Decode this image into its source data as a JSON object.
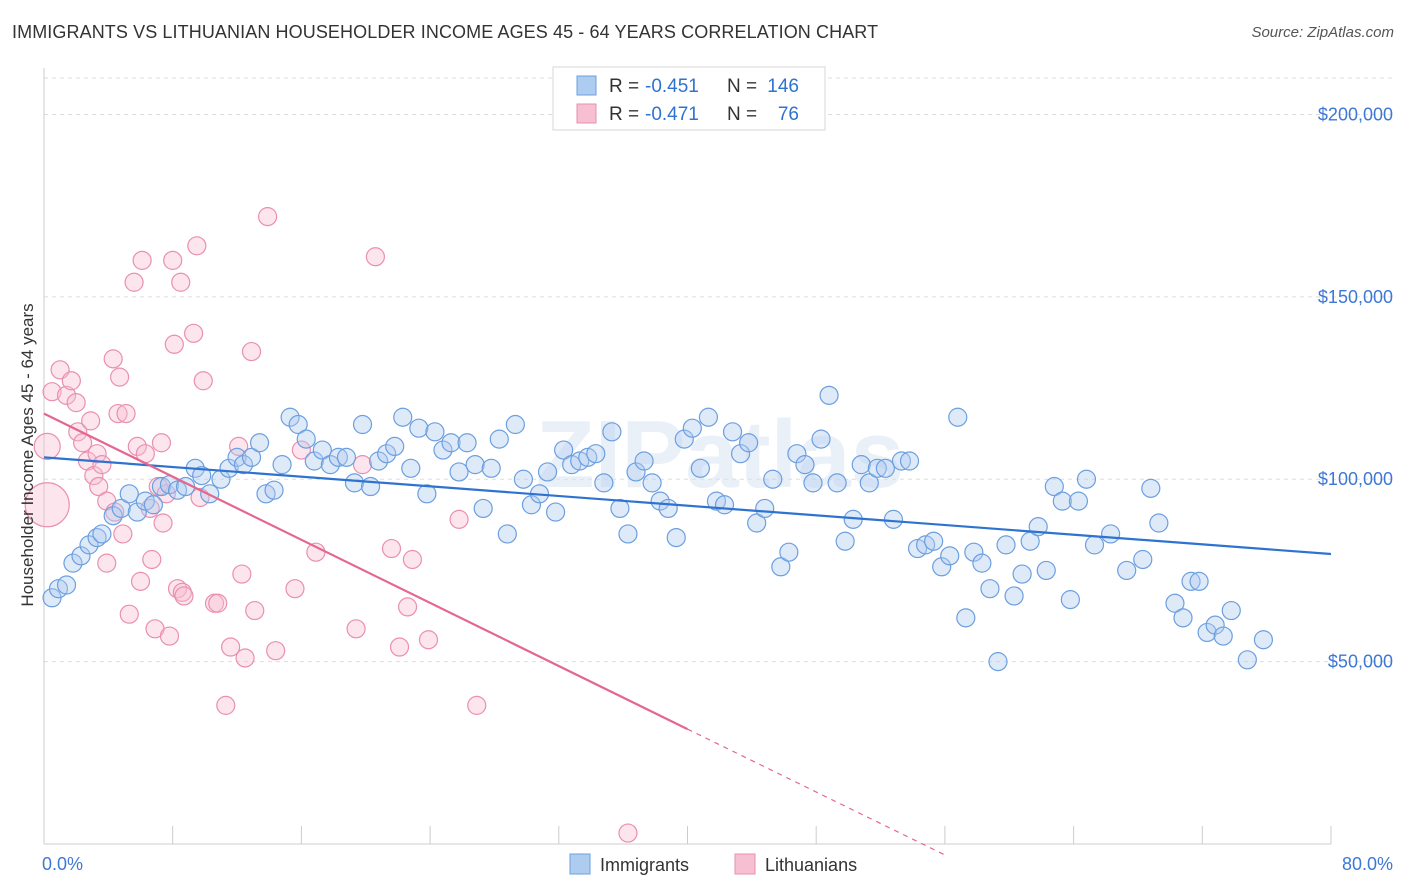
{
  "chart_data": {
    "type": "scatter",
    "title": "IMMIGRANTS VS LITHUANIAN HOUSEHOLDER INCOME AGES 45 - 64 YEARS CORRELATION CHART",
    "source": "Source: ZipAtlas.com",
    "watermark": "ZIPatlas",
    "xlabel": "",
    "ylabel": "Householder Income Ages 45 - 64 years",
    "xlim": [
      0,
      80
    ],
    "ylim": [
      0,
      210000
    ],
    "x_tick_labels": [
      "0.0%",
      "80.0%"
    ],
    "y_ticks": [
      50000,
      100000,
      150000,
      200000
    ],
    "y_tick_labels": [
      "$50,000",
      "$100,000",
      "$150,000",
      "$200,000"
    ],
    "grid": true,
    "legend": {
      "top": [
        {
          "r_label": "R =",
          "r_value": "-0.451",
          "n_label": "N =",
          "n_value": "146"
        },
        {
          "r_label": "R =",
          "r_value": "-0.471",
          "n_label": "N =",
          "n_value": "76"
        }
      ],
      "bottom": [
        "Immigrants",
        "Lithuanians"
      ]
    },
    "colors": {
      "immigrants_fill": "#aecbf0",
      "immigrants_stroke": "#6b9fe0",
      "immigrants_line": "#2f73d0",
      "lithuanians_fill": "#f7bfd2",
      "lithuanians_stroke": "#ea8fb0",
      "lithuanians_line": "#e4678f",
      "tick_label": "#3d78d6",
      "grid": "#dddddd"
    },
    "series": [
      {
        "name": "Immigrants",
        "trend": {
          "x": [
            0,
            80
          ],
          "y": [
            106000,
            79500
          ]
        },
        "points": [
          [
            0.5,
            67500
          ],
          [
            0.9,
            70000
          ],
          [
            1.4,
            71000
          ],
          [
            1.8,
            77000
          ],
          [
            2.3,
            79000
          ],
          [
            2.8,
            82000
          ],
          [
            3.3,
            84000
          ],
          [
            3.6,
            85000
          ],
          [
            4.3,
            90000
          ],
          [
            4.8,
            92000
          ],
          [
            5.3,
            96000
          ],
          [
            5.8,
            91000
          ],
          [
            6.3,
            94000
          ],
          [
            6.8,
            93000
          ],
          [
            7.3,
            98000
          ],
          [
            7.8,
            98500
          ],
          [
            8.3,
            97000
          ],
          [
            8.8,
            98000
          ],
          [
            9.4,
            103000
          ],
          [
            9.8,
            101000
          ],
          [
            10.3,
            96000
          ],
          [
            11.0,
            100000
          ],
          [
            11.5,
            103000
          ],
          [
            12.0,
            106000
          ],
          [
            12.4,
            104000
          ],
          [
            12.9,
            106000
          ],
          [
            13.4,
            110000
          ],
          [
            13.8,
            96000
          ],
          [
            14.3,
            97000
          ],
          [
            14.8,
            104000
          ],
          [
            15.3,
            117000
          ],
          [
            15.8,
            115000
          ],
          [
            16.3,
            111000
          ],
          [
            16.8,
            105000
          ],
          [
            17.3,
            108000
          ],
          [
            17.8,
            104000
          ],
          [
            18.3,
            106000
          ],
          [
            18.8,
            106000
          ],
          [
            19.3,
            99000
          ],
          [
            19.8,
            115000
          ],
          [
            20.3,
            98000
          ],
          [
            20.8,
            105000
          ],
          [
            21.3,
            107000
          ],
          [
            21.8,
            109000
          ],
          [
            22.3,
            117000
          ],
          [
            22.8,
            103000
          ],
          [
            23.3,
            114000
          ],
          [
            23.8,
            96000
          ],
          [
            24.3,
            113000
          ],
          [
            24.8,
            108000
          ],
          [
            25.3,
            110000
          ],
          [
            25.8,
            102000
          ],
          [
            26.3,
            110000
          ],
          [
            26.8,
            104000
          ],
          [
            27.3,
            92000
          ],
          [
            27.8,
            103000
          ],
          [
            28.3,
            111000
          ],
          [
            28.8,
            85000
          ],
          [
            29.3,
            115000
          ],
          [
            29.8,
            100000
          ],
          [
            30.3,
            93000
          ],
          [
            30.8,
            96000
          ],
          [
            31.3,
            102000
          ],
          [
            31.8,
            91000
          ],
          [
            32.3,
            108000
          ],
          [
            32.8,
            104000
          ],
          [
            33.3,
            105000
          ],
          [
            33.8,
            106000
          ],
          [
            34.3,
            107000
          ],
          [
            34.8,
            99000
          ],
          [
            35.3,
            113000
          ],
          [
            35.8,
            92000
          ],
          [
            36.3,
            85000
          ],
          [
            36.8,
            102000
          ],
          [
            37.3,
            105000
          ],
          [
            37.8,
            99000
          ],
          [
            38.3,
            94000
          ],
          [
            38.8,
            92000
          ],
          [
            39.3,
            84000
          ],
          [
            39.8,
            111000
          ],
          [
            40.3,
            114000
          ],
          [
            40.8,
            103000
          ],
          [
            41.3,
            117000
          ],
          [
            41.8,
            94000
          ],
          [
            42.3,
            93000
          ],
          [
            42.8,
            113000
          ],
          [
            43.3,
            107000
          ],
          [
            43.8,
            110000
          ],
          [
            44.3,
            88000
          ],
          [
            44.8,
            92000
          ],
          [
            45.3,
            100000
          ],
          [
            45.8,
            76000
          ],
          [
            46.3,
            80000
          ],
          [
            46.8,
            107000
          ],
          [
            47.3,
            104000
          ],
          [
            47.8,
            99000
          ],
          [
            48.3,
            111000
          ],
          [
            48.8,
            123000
          ],
          [
            49.3,
            99000
          ],
          [
            49.8,
            83000
          ],
          [
            50.3,
            89000
          ],
          [
            50.8,
            104000
          ],
          [
            51.3,
            99000
          ],
          [
            51.8,
            103000
          ],
          [
            52.3,
            103000
          ],
          [
            52.8,
            89000
          ],
          [
            53.3,
            105000
          ],
          [
            53.8,
            105000
          ],
          [
            54.3,
            81000
          ],
          [
            54.8,
            82000
          ],
          [
            55.3,
            83000
          ],
          [
            55.8,
            76000
          ],
          [
            56.3,
            79000
          ],
          [
            56.8,
            117000
          ],
          [
            57.3,
            62000
          ],
          [
            57.8,
            80000
          ],
          [
            58.3,
            77000
          ],
          [
            58.8,
            70000
          ],
          [
            59.3,
            50000
          ],
          [
            59.8,
            82000
          ],
          [
            60.3,
            68000
          ],
          [
            60.8,
            74000
          ],
          [
            61.3,
            83000
          ],
          [
            61.8,
            87000
          ],
          [
            62.3,
            75000
          ],
          [
            62.8,
            98000
          ],
          [
            63.3,
            94000
          ],
          [
            63.8,
            67000
          ],
          [
            64.3,
            94000
          ],
          [
            64.8,
            100000
          ],
          [
            65.3,
            82000
          ],
          [
            66.3,
            85000
          ],
          [
            67.3,
            75000
          ],
          [
            68.3,
            78000
          ],
          [
            68.8,
            97500
          ],
          [
            69.3,
            88000
          ],
          [
            70.3,
            66000
          ],
          [
            70.8,
            62000
          ],
          [
            71.3,
            72000
          ],
          [
            71.8,
            72000
          ],
          [
            72.3,
            58000
          ],
          [
            72.8,
            60000
          ],
          [
            73.3,
            57000
          ],
          [
            73.8,
            64000
          ],
          [
            74.8,
            50500
          ],
          [
            75.8,
            56000
          ]
        ]
      },
      {
        "name": "Lithuanians",
        "trend": {
          "x": [
            0,
            40
          ],
          "y": [
            118000,
            31500
          ]
        },
        "trend_dashed": {
          "x": [
            40,
            56
          ],
          "y": [
            31500,
            -3000
          ]
        },
        "points": [
          [
            0.2,
            109000,
            "big"
          ],
          [
            0.2,
            93000,
            "huge"
          ],
          [
            0.5,
            124000
          ],
          [
            1.0,
            130000
          ],
          [
            1.4,
            123000
          ],
          [
            1.7,
            127000
          ],
          [
            2.0,
            121000
          ],
          [
            2.1,
            113000
          ],
          [
            2.4,
            110000
          ],
          [
            2.7,
            105000
          ],
          [
            2.9,
            116000
          ],
          [
            3.1,
            101000
          ],
          [
            3.3,
            107000
          ],
          [
            3.4,
            98000
          ],
          [
            3.6,
            104000
          ],
          [
            3.9,
            94000
          ],
          [
            3.9,
            77000
          ],
          [
            4.3,
            133000
          ],
          [
            4.4,
            91000
          ],
          [
            4.6,
            118000
          ],
          [
            4.7,
            128000
          ],
          [
            4.9,
            85000
          ],
          [
            5.1,
            118000
          ],
          [
            5.3,
            63000
          ],
          [
            5.6,
            154000
          ],
          [
            5.8,
            109000
          ],
          [
            6.0,
            72000
          ],
          [
            6.1,
            160000
          ],
          [
            6.3,
            107000
          ],
          [
            6.6,
            92000
          ],
          [
            6.7,
            78000
          ],
          [
            6.9,
            59000
          ],
          [
            7.1,
            98000
          ],
          [
            7.3,
            110000
          ],
          [
            7.4,
            88000
          ],
          [
            7.6,
            96000
          ],
          [
            7.8,
            57000
          ],
          [
            8.0,
            160000
          ],
          [
            8.1,
            137000
          ],
          [
            8.3,
            70000
          ],
          [
            8.5,
            154000
          ],
          [
            8.6,
            69000
          ],
          [
            8.7,
            68000
          ],
          [
            9.3,
            140000
          ],
          [
            9.5,
            164000
          ],
          [
            9.7,
            95000
          ],
          [
            9.9,
            127000
          ],
          [
            10.6,
            66000
          ],
          [
            10.8,
            66000
          ],
          [
            11.3,
            38000
          ],
          [
            11.6,
            54000
          ],
          [
            12.1,
            109000
          ],
          [
            12.3,
            74000
          ],
          [
            12.5,
            51000
          ],
          [
            12.9,
            135000
          ],
          [
            13.1,
            64000
          ],
          [
            13.9,
            172000
          ],
          [
            14.4,
            53000
          ],
          [
            15.6,
            70000
          ],
          [
            16.0,
            108000
          ],
          [
            16.9,
            80000
          ],
          [
            19.4,
            59000
          ],
          [
            19.8,
            104000
          ],
          [
            20.6,
            161000
          ],
          [
            21.6,
            81000
          ],
          [
            22.1,
            54000
          ],
          [
            22.6,
            65000
          ],
          [
            22.9,
            78000
          ],
          [
            23.9,
            56000
          ],
          [
            25.8,
            89000
          ],
          [
            26.9,
            38000
          ],
          [
            36.3,
            3000
          ]
        ]
      }
    ]
  }
}
